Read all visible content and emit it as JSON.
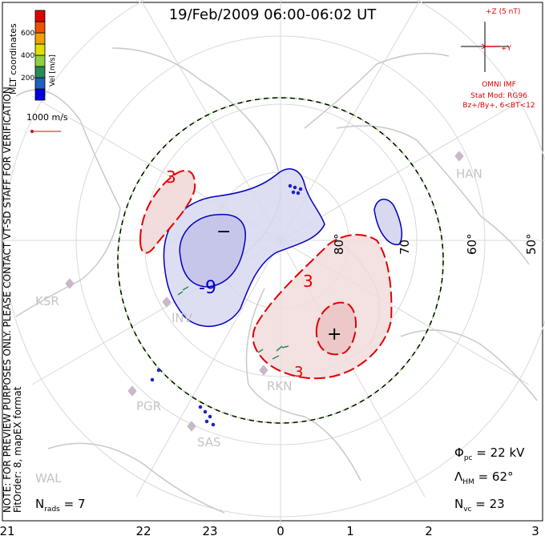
{
  "title": "19/Feb/2009 06:00-06:02 UT",
  "side_text": {
    "mlt_coords": "MLT coordinates",
    "note": "NOTE: FOR PREVIEW PURPOSES ONLY. PLEASE CONTACT VT-SD STAFF FOR VERIFICATION.",
    "fitorder": "FitOrder: 8, mapEX format"
  },
  "colorbar": {
    "title": "Vel [m/s]",
    "ticks": [
      "600",
      "400",
      "200"
    ],
    "colors": [
      "#0000e0",
      "#2060c0",
      "#2a8a5a",
      "#90d040",
      "#e0e000",
      "#f0a000",
      "#f05000",
      "#e00000"
    ]
  },
  "ref_vector": {
    "label": "1000 m/s",
    "color": "#e00000"
  },
  "imf": {
    "z_label": "+Z (5 nT)",
    "y_label": "+Y",
    "source": "OMNI IMF",
    "model": "Stat Mod: RG96",
    "condition": "Bz+/By+, 6<BT<12",
    "color": "#e00000"
  },
  "lat_labels": [
    "80°",
    "70",
    "60°",
    "50°"
  ],
  "contours": {
    "neg_label": "-9",
    "neg_center": "−",
    "pos_label": "3",
    "pos_label2": "3",
    "pos_label3": "3",
    "pos_center": "+",
    "neg_color": "#0000c0",
    "pos_color": "#e00000"
  },
  "radars": [
    "HAN",
    "KSR",
    "INV",
    "RKN",
    "PGR",
    "SAS",
    "WAL"
  ],
  "stats": {
    "phi_pc": {
      "sym": "Φ",
      "sub": "pc",
      "value": "= 22 kV"
    },
    "lambda_hm": {
      "sym": "Λ",
      "sub": "HM",
      "value": "= 62°"
    },
    "n_vc": {
      "sym": "N",
      "sub": "vc",
      "value": "= 23"
    },
    "n_rads": {
      "sym": "N",
      "sub": "rads",
      "value": "= 7"
    }
  },
  "mlt_labels": [
    "21",
    "22",
    "23",
    "0",
    "1",
    "2",
    "3"
  ]
}
